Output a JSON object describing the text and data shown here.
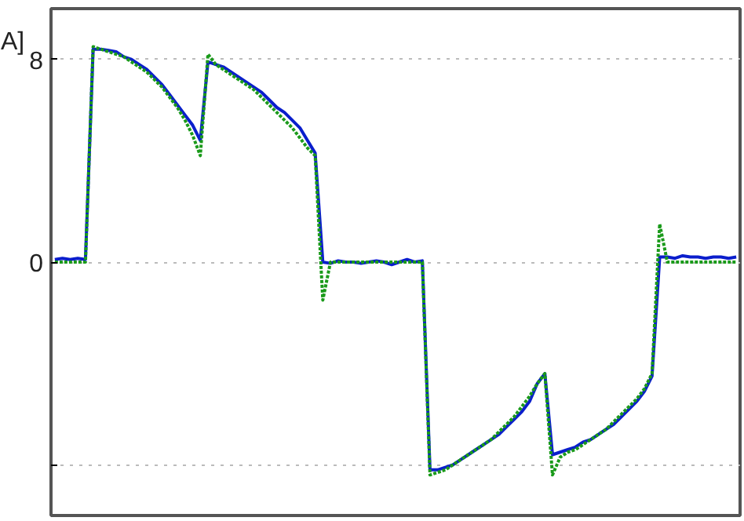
{
  "chart_data": {
    "type": "line",
    "ylabel": "A]",
    "categories": [
      null,
      null,
      null,
      null,
      null,
      null,
      null,
      null,
      null,
      null,
      null,
      null,
      null,
      null,
      null,
      null,
      null,
      null,
      null,
      null,
      null,
      null,
      null,
      null,
      null,
      null,
      null,
      null,
      null,
      null,
      null,
      null,
      null,
      null,
      null,
      null,
      null,
      null,
      null,
      null,
      null,
      null,
      null,
      null,
      null,
      null,
      null,
      null,
      null,
      null,
      null,
      null,
      null,
      null,
      null,
      null,
      null,
      null,
      null,
      null,
      null,
      null,
      null,
      null,
      null,
      null,
      null,
      null,
      null,
      null,
      null,
      null,
      null,
      null,
      null,
      null,
      null,
      null,
      null,
      null,
      null,
      null,
      null,
      null,
      null,
      null,
      null,
      null,
      null,
      null
    ],
    "series": [
      {
        "color": "#0a1ecc",
        "line_style": "solid",
        "values": [
          0.1,
          0.15,
          0.1,
          0.15,
          0.1,
          8.4,
          8.4,
          8.35,
          8.3,
          8.1,
          8.0,
          7.8,
          7.6,
          7.3,
          7.0,
          6.6,
          6.2,
          5.8,
          5.4,
          4.8,
          7.9,
          7.8,
          7.7,
          7.5,
          7.3,
          7.1,
          6.9,
          6.7,
          6.4,
          6.1,
          5.9,
          5.6,
          5.3,
          4.8,
          4.3,
          0.0,
          -0.05,
          0.05,
          0.0,
          0.0,
          -0.05,
          0.0,
          0.05,
          0.0,
          -0.1,
          0.0,
          0.1,
          0.0,
          0.05,
          -8.2,
          -8.2,
          -8.1,
          -8.0,
          -7.8,
          -7.6,
          -7.4,
          -7.2,
          -7.0,
          -6.8,
          -6.5,
          -6.2,
          -5.9,
          -5.5,
          -4.8,
          -4.4,
          -7.6,
          -7.5,
          -7.4,
          -7.3,
          -7.1,
          -7.0,
          -6.8,
          -6.6,
          -6.4,
          -6.1,
          -5.8,
          -5.5,
          -5.1,
          -4.5,
          0.2,
          0.2,
          0.15,
          0.25,
          0.2,
          0.2,
          0.15,
          0.2,
          0.2,
          0.15,
          0.2
        ]
      },
      {
        "color": "#1a9a1a",
        "line_style": "dotted",
        "values": [
          0,
          0,
          0,
          0,
          0,
          8.5,
          8.4,
          8.3,
          8.2,
          8.1,
          7.9,
          7.7,
          7.5,
          7.2,
          6.9,
          6.5,
          6.1,
          5.6,
          5.0,
          4.2,
          8.2,
          7.8,
          7.6,
          7.4,
          7.2,
          7.0,
          6.8,
          6.5,
          6.2,
          5.9,
          5.6,
          5.3,
          4.9,
          4.5,
          4.2,
          -1.5,
          0,
          0,
          0,
          0,
          0,
          0,
          0,
          0,
          0,
          0,
          0,
          0,
          0,
          -8.4,
          -8.3,
          -8.2,
          -8.0,
          -7.8,
          -7.6,
          -7.4,
          -7.2,
          -7.0,
          -6.7,
          -6.4,
          -6.1,
          -5.7,
          -5.3,
          -4.8,
          -4.4,
          -8.4,
          -7.7,
          -7.5,
          -7.4,
          -7.2,
          -7.0,
          -6.8,
          -6.6,
          -6.3,
          -6.0,
          -5.7,
          -5.4,
          -5.0,
          -4.4,
          1.5,
          0,
          0,
          0,
          0,
          0,
          0,
          0,
          0,
          0,
          0
        ]
      }
    ],
    "ylim": [
      -10,
      10
    ],
    "yticks": [
      8,
      0,
      {
        "value": -8,
        "label": null
      }
    ],
    "grid": "y",
    "marker": "none"
  }
}
